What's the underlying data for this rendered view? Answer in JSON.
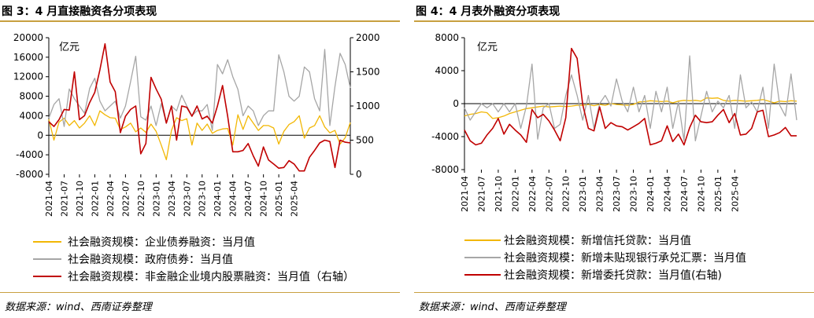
{
  "panels": [
    {
      "title": "图 3：4 月直接融资各分项表现",
      "source": "数据来源：wind、西南证券整理"
    },
    {
      "title": "图 4：4 月表外融资分项表现",
      "source": "数据来源：wind、西南证券整理"
    }
  ],
  "chart_data": [
    {
      "type": "line",
      "unit_label": "亿元",
      "x_ticks": [
        "2021-04",
        "2021-07",
        "2021-10",
        "2022-01",
        "2022-04",
        "2022-07",
        "2022-10",
        "2023-01",
        "2023-04",
        "2023-07",
        "2023-10",
        "2024-01",
        "2024-04",
        "2024-07",
        "2024-10",
        "2025-01",
        "2025-04"
      ],
      "x_start": "2021-04",
      "ylim_left": [
        -8000,
        20000
      ],
      "yticks_left": [
        -8000,
        -4000,
        0,
        4000,
        8000,
        12000,
        16000,
        20000
      ],
      "ylim_right": [
        0,
        2000
      ],
      "yticks_right": [
        0,
        500,
        1000,
        1500,
        2000
      ],
      "grid": false,
      "legend_position": "bottom",
      "series": [
        {
          "name": "社会融资规模：企业债券融资：当月值",
          "color": "#f2b705",
          "axis": "left",
          "values": [
            3300,
            -1000,
            2700,
            3500,
            2000,
            3000,
            1500,
            2500,
            4000,
            2000,
            5000,
            4200,
            3600,
            3500,
            1200,
            1700,
            2500,
            700,
            1500,
            600,
            2300,
            800,
            -2000,
            -5000,
            1000,
            3600,
            3000,
            3400,
            -2000,
            2500,
            1000,
            2300,
            400,
            1000,
            1300,
            1400,
            -2000,
            4200,
            1200,
            4000,
            2500,
            1000,
            2000,
            2000,
            1500,
            -1800,
            800,
            2200,
            2800,
            4000,
            -600,
            1500,
            2000,
            4000,
            1700,
            500,
            1000,
            -1800,
            -500,
            2600
          ]
        },
        {
          "name": "社会融资规模：政府债券：当月值",
          "color": "#a6a6a6",
          "axis": "left",
          "values": [
            3500,
            6300,
            7500,
            1800,
            9500,
            7500,
            6000,
            4500,
            9600,
            11700,
            7000,
            5000,
            6000,
            7000,
            3500,
            6000,
            11000,
            16200,
            3800,
            3100,
            6000,
            2000,
            6500,
            2500,
            6000,
            5000,
            8200,
            6000,
            4000,
            5000,
            5000,
            6300,
            1000,
            14500,
            12600,
            15500,
            12000,
            9400,
            4000,
            6000,
            5000,
            2000,
            4000,
            5000,
            5000,
            16500,
            13000,
            8000,
            7000,
            8000,
            14000,
            13000,
            7500,
            5000,
            17600,
            2000,
            10000,
            16800,
            14500,
            9700
          ]
        },
        {
          "name": "社会融资规模：非金融企业境内股票融资：当月值（右轴）",
          "color": "#c00000",
          "axis": "right",
          "values": [
            770,
            700,
            800,
            950,
            940,
            1500,
            800,
            860,
            1050,
            1200,
            1530,
            1910,
            1350,
            1210,
            610,
            850,
            950,
            1000,
            300,
            450,
            1420,
            1250,
            1100,
            750,
            1000,
            500,
            1000,
            980,
            850,
            1000,
            810,
            850,
            750,
            1000,
            1300,
            850,
            330,
            330,
            350,
            450,
            270,
            120,
            400,
            210,
            150,
            90,
            100,
            200,
            150,
            50,
            50,
            250,
            350,
            460,
            500,
            480,
            100,
            500,
            470,
            460
          ]
        }
      ]
    },
    {
      "type": "line",
      "unit_label": "亿元",
      "x_ticks": [
        "2021-04",
        "2021-07",
        "2021-10",
        "2022-01",
        "2022-04",
        "2022-07",
        "2022-10",
        "2023-01",
        "2023-04",
        "2023-07",
        "2023-10",
        "2024-01",
        "2024-04",
        "2024-07",
        "2024-10",
        "2025-01",
        "2025-04"
      ],
      "x_start": "2021-04",
      "ylim_left": [
        -8000,
        8000
      ],
      "yticks_left": [
        -8000,
        -4000,
        0,
        4000,
        8000
      ],
      "grid": false,
      "legend_position": "bottom",
      "series": [
        {
          "name": "社会融资规模：新增信托贷款：当月值",
          "color": "#f2b705",
          "axis": "left",
          "values": [
            -1500,
            -1300,
            -1200,
            -1000,
            -1100,
            -1800,
            -1700,
            -1500,
            -1200,
            -1000,
            -800,
            -600,
            -500,
            -400,
            -300,
            -400,
            -350,
            -300,
            -350,
            -300,
            -200,
            -200,
            -100,
            -250,
            -100,
            -200,
            0,
            -100,
            -150,
            -200,
            -100,
            200,
            250,
            350,
            300,
            250,
            300,
            100,
            300,
            400,
            350,
            400,
            300,
            700,
            650,
            700,
            400,
            300,
            400,
            350,
            300,
            350,
            400,
            500,
            300,
            100,
            300,
            250,
            350,
            300
          ]
        },
        {
          "name": "社会融资规模：新增未贴现银行承兑汇票：当月值",
          "color": "#a6a6a6",
          "axis": "left",
          "values": [
            -500,
            -2000,
            -1000,
            0,
            -500,
            0,
            -1000,
            0,
            -1000,
            0,
            -3000,
            -300,
            4800,
            -4300,
            -500,
            0,
            -3000,
            -2500,
            1000,
            3500,
            1000,
            -2000,
            1000,
            -3000,
            0,
            1000,
            -300,
            3000,
            300,
            -1000,
            2000,
            -1000,
            1000,
            -3000,
            1500,
            -1000,
            2000,
            -3000,
            200,
            -4500,
            5800,
            -4500,
            -1500,
            1500,
            -1000,
            300,
            -500,
            1000,
            -3000,
            3500,
            -500,
            200,
            -1000,
            2000,
            -3000,
            4800,
            -200,
            -1500,
            3600,
            -2000
          ]
        },
        {
          "name": "社会融资规模：新增委托贷款：当月值(右轴)",
          "color": "#c00000",
          "axis": "left",
          "values": [
            -3200,
            -4500,
            -5000,
            -4800,
            -3800,
            -3000,
            -1800,
            -3700,
            -2500,
            -3200,
            -3800,
            -4700,
            -700,
            -1700,
            -1300,
            -2100,
            -3200,
            -4500,
            -1700,
            6700,
            5500,
            -100,
            -3000,
            -3300,
            -400,
            -3000,
            -2300,
            -2700,
            -2800,
            -3200,
            -2800,
            -2400,
            -1800,
            -5000,
            -4800,
            -4500,
            -2700,
            -4600,
            -3700,
            -5000,
            -2900,
            -1400,
            -2200,
            -2300,
            -2200,
            -1400,
            -700,
            -2300,
            -1200,
            -3800,
            -3700,
            -3000,
            -1000,
            -800,
            -4000,
            -3800,
            -3500,
            -2900,
            -3900,
            -3900
          ]
        }
      ]
    }
  ]
}
